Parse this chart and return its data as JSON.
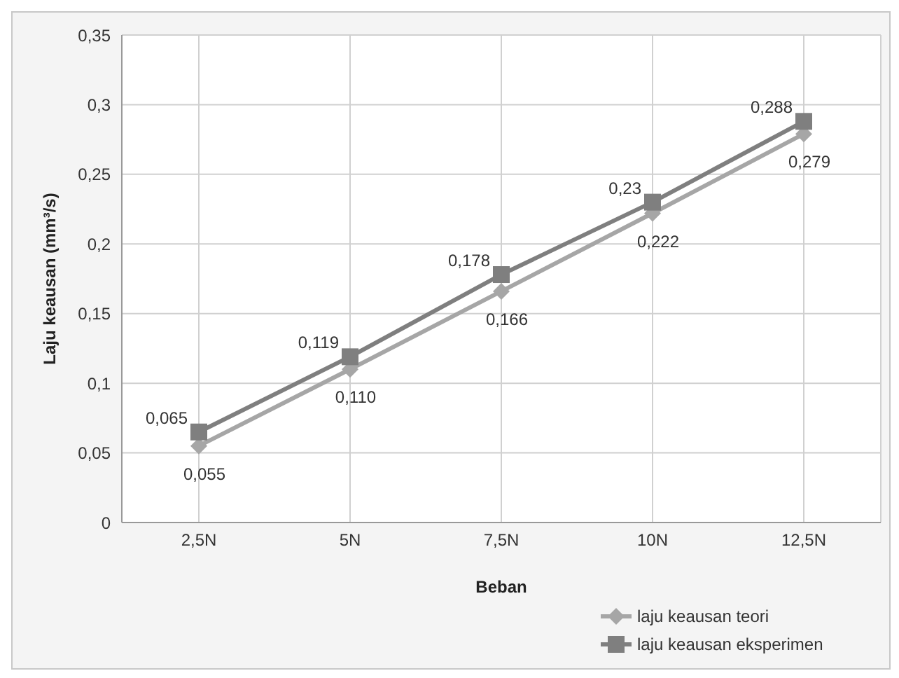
{
  "chart_data": {
    "type": "line",
    "ylabel": "Laju keausan (mm³/s)",
    "xlabel": "Beban",
    "categories": [
      "2,5N",
      "5N",
      "7,5N",
      "10N",
      "12,5N"
    ],
    "series": [
      {
        "name": "laju keausan teori",
        "color": "#a6a6a6",
        "marker": "diamond",
        "values": [
          0.055,
          0.11,
          0.166,
          0.222,
          0.279
        ],
        "value_labels": [
          "0,055",
          "0,110",
          "0,166",
          "0,222",
          "0,279"
        ]
      },
      {
        "name": "laju keausan eksperimen",
        "color": "#7f7f7f",
        "marker": "square",
        "values": [
          0.065,
          0.119,
          0.178,
          0.23,
          0.288
        ],
        "value_labels": [
          "0,065",
          "0,119",
          "0,178",
          "0,23",
          "0,288"
        ]
      }
    ],
    "ylim": [
      0,
      0.35
    ],
    "yticks": [
      0,
      {
        "value": 0.05,
        "label": "0,05"
      },
      {
        "value": 0.1,
        "label": "0,1"
      },
      {
        "value": 0.15,
        "label": "0,15"
      },
      {
        "value": 0.2,
        "label": "0,2"
      },
      {
        "value": 0.25,
        "label": "0,25"
      },
      {
        "value": 0.3,
        "label": "0,3"
      },
      {
        "value": 0.35,
        "label": "0,35"
      }
    ],
    "grid": true,
    "legend": "bottom right"
  }
}
